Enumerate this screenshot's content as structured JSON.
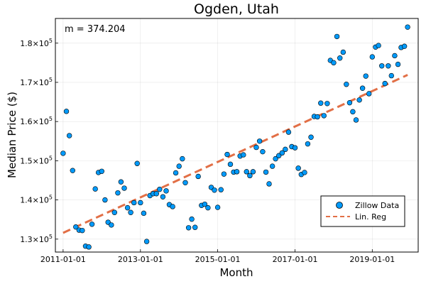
{
  "chart_data": {
    "type": "scatter",
    "title": "Ogden, Utah",
    "xlabel": "Month",
    "ylabel": "Median Price ($)",
    "annotation": "m = 374.204",
    "x_tick_labels": [
      "2011-01-01",
      "2013-01-01",
      "2015-01-01",
      "2017-01-01",
      "2019-01-01"
    ],
    "y_tick_labels": [
      {
        "base": "1.3×10",
        "exp": "5"
      },
      {
        "base": "1.4×10",
        "exp": "5"
      },
      {
        "base": "1.5×10",
        "exp": "5"
      },
      {
        "base": "1.6×10",
        "exp": "5"
      },
      {
        "base": "1.7×10",
        "exp": "5"
      },
      {
        "base": "1.8×10",
        "exp": "5"
      }
    ],
    "y_ticks": [
      130000,
      140000,
      150000,
      160000,
      170000,
      180000
    ],
    "x_ticks": [
      "2011-01-01",
      "2013-01-01",
      "2015-01-01",
      "2017-01-01",
      "2019-01-01"
    ],
    "xlim": [
      "2010-10-20",
      "2020-03-10"
    ],
    "ylim": [
      126700,
      186300
    ],
    "grid": true,
    "legend_position": "bottom-right",
    "series": [
      {
        "name": "Zillow Data",
        "kind": "scatter",
        "color": "#009AFA",
        "points": [
          [
            "2011-01-01",
            151900
          ],
          [
            "2011-02-01",
            162600
          ],
          [
            "2011-03-01",
            156400
          ],
          [
            "2011-04-01",
            147500
          ],
          [
            "2011-05-01",
            133100
          ],
          [
            "2011-06-01",
            132300
          ],
          [
            "2011-07-01",
            132200
          ],
          [
            "2011-08-01",
            128200
          ],
          [
            "2011-09-01",
            128000
          ],
          [
            "2011-10-01",
            133800
          ],
          [
            "2011-11-01",
            142800
          ],
          [
            "2011-12-01",
            147000
          ],
          [
            "2012-01-01",
            147300
          ],
          [
            "2012-02-01",
            140000
          ],
          [
            "2012-03-01",
            134300
          ],
          [
            "2012-04-01",
            133600
          ],
          [
            "2012-05-01",
            136800
          ],
          [
            "2012-06-01",
            141800
          ],
          [
            "2012-07-01",
            144600
          ],
          [
            "2012-08-01",
            143000
          ],
          [
            "2012-09-01",
            138000
          ],
          [
            "2012-10-01",
            136800
          ],
          [
            "2012-11-01",
            139300
          ],
          [
            "2012-12-01",
            149300
          ],
          [
            "2013-01-01",
            139300
          ],
          [
            "2013-02-01",
            136600
          ],
          [
            "2013-03-01",
            129400
          ],
          [
            "2013-04-01",
            141100
          ],
          [
            "2013-05-01",
            141600
          ],
          [
            "2013-06-01",
            141600
          ],
          [
            "2013-07-01",
            142700
          ],
          [
            "2013-08-01",
            140800
          ],
          [
            "2013-09-01",
            142300
          ],
          [
            "2013-10-01",
            138800
          ],
          [
            "2013-11-01",
            138300
          ],
          [
            "2013-12-01",
            146900
          ],
          [
            "2014-01-01",
            148600
          ],
          [
            "2014-02-01",
            150500
          ],
          [
            "2014-03-01",
            144400
          ],
          [
            "2014-04-01",
            132900
          ],
          [
            "2014-05-01",
            135100
          ],
          [
            "2014-06-01",
            133000
          ],
          [
            "2014-07-01",
            146000
          ],
          [
            "2014-08-01",
            138600
          ],
          [
            "2014-09-01",
            138900
          ],
          [
            "2014-10-01",
            138000
          ],
          [
            "2014-11-01",
            143200
          ],
          [
            "2014-12-01",
            142500
          ],
          [
            "2015-01-01",
            138100
          ],
          [
            "2015-02-01",
            142600
          ],
          [
            "2015-03-01",
            146600
          ],
          [
            "2015-04-01",
            151600
          ],
          [
            "2015-05-01",
            149100
          ],
          [
            "2015-06-01",
            147100
          ],
          [
            "2015-07-01",
            147200
          ],
          [
            "2015-08-01",
            151200
          ],
          [
            "2015-09-01",
            151500
          ],
          [
            "2015-10-01",
            147200
          ],
          [
            "2015-11-01",
            146200
          ],
          [
            "2015-12-01",
            147200
          ],
          [
            "2016-01-01",
            153400
          ],
          [
            "2016-02-01",
            155000
          ],
          [
            "2016-03-01",
            152300
          ],
          [
            "2016-04-01",
            147100
          ],
          [
            "2016-05-01",
            144100
          ],
          [
            "2016-06-01",
            148600
          ],
          [
            "2016-07-01",
            150500
          ],
          [
            "2016-08-01",
            151300
          ],
          [
            "2016-09-01",
            152000
          ],
          [
            "2016-10-01",
            152900
          ],
          [
            "2016-11-01",
            157300
          ],
          [
            "2016-12-01",
            153600
          ],
          [
            "2017-01-01",
            153300
          ],
          [
            "2017-02-01",
            148100
          ],
          [
            "2017-03-01",
            146500
          ],
          [
            "2017-04-01",
            147000
          ],
          [
            "2017-05-01",
            154300
          ],
          [
            "2017-06-01",
            156000
          ],
          [
            "2017-07-01",
            161300
          ],
          [
            "2017-08-01",
            161200
          ],
          [
            "2017-09-01",
            164700
          ],
          [
            "2017-10-01",
            161500
          ],
          [
            "2017-11-01",
            164600
          ],
          [
            "2017-12-01",
            175600
          ],
          [
            "2018-01-01",
            175000
          ],
          [
            "2018-02-01",
            181700
          ],
          [
            "2018-03-01",
            176200
          ],
          [
            "2018-04-01",
            177700
          ],
          [
            "2018-05-01",
            169500
          ],
          [
            "2018-06-01",
            164800
          ],
          [
            "2018-07-01",
            162500
          ],
          [
            "2018-08-01",
            160400
          ],
          [
            "2018-09-01",
            165500
          ],
          [
            "2018-10-01",
            168500
          ],
          [
            "2018-11-01",
            171600
          ],
          [
            "2018-12-01",
            167100
          ],
          [
            "2019-01-01",
            176500
          ],
          [
            "2019-02-01",
            179000
          ],
          [
            "2019-03-01",
            179400
          ],
          [
            "2019-04-01",
            174200
          ],
          [
            "2019-05-01",
            169700
          ],
          [
            "2019-06-01",
            174200
          ],
          [
            "2019-07-01",
            171700
          ],
          [
            "2019-08-01",
            176800
          ],
          [
            "2019-09-01",
            174600
          ],
          [
            "2019-10-01",
            178900
          ],
          [
            "2019-11-01",
            179200
          ],
          [
            "2019-12-01",
            184100
          ]
        ]
      },
      {
        "name": "Lin. Reg",
        "kind": "line",
        "style": "dashed",
        "color": "#E26F46",
        "points": [
          [
            "2011-01-01",
            131600
          ],
          [
            "2019-12-01",
            171900
          ]
        ]
      }
    ]
  }
}
